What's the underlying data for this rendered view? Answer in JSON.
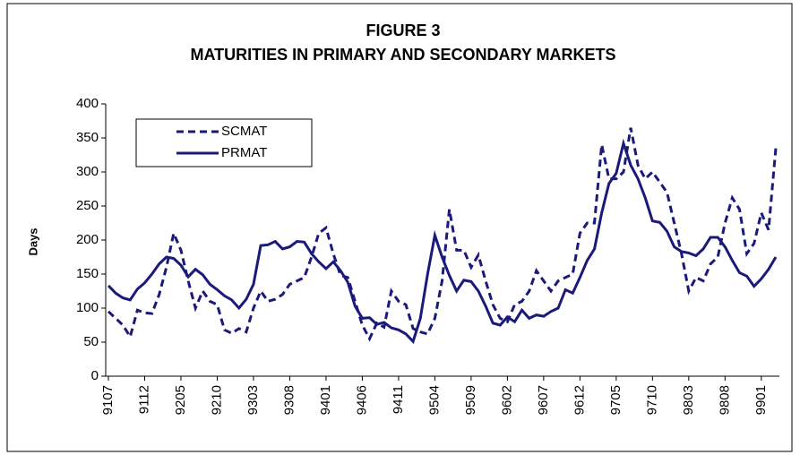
{
  "chart_data": {
    "type": "line",
    "title": "FIGURE 3",
    "subtitle": "MATURITIES IN PRIMARY AND SECONDARY MARKETS",
    "y_label": "Days",
    "categories": [
      "9107",
      null,
      null,
      null,
      null,
      "9112",
      null,
      null,
      null,
      null,
      "9205",
      null,
      null,
      null,
      null,
      "9210",
      null,
      null,
      null,
      null,
      "9303",
      null,
      null,
      null,
      null,
      "9308",
      null,
      null,
      null,
      null,
      "9401",
      null,
      null,
      null,
      null,
      "9406",
      null,
      null,
      null,
      null,
      "9411",
      null,
      null,
      null,
      null,
      "9504",
      null,
      null,
      null,
      null,
      "9509",
      null,
      null,
      null,
      null,
      "9602",
      null,
      null,
      null,
      null,
      "9607",
      null,
      null,
      null,
      null,
      "9612",
      null,
      null,
      null,
      null,
      "9705",
      null,
      null,
      null,
      null,
      "9710",
      null,
      null,
      null,
      null,
      "9803",
      null,
      null,
      null,
      null,
      "9808",
      null,
      null,
      null,
      null,
      "9901",
      null,
      null
    ],
    "series": [
      {
        "name": "SCMAT",
        "color": "#1a1a7a",
        "linestyle": "dashed",
        "values": [
          95,
          85,
          75,
          58,
          97,
          93,
          92,
          120,
          160,
          210,
          185,
          140,
          100,
          125,
          110,
          105,
          68,
          63,
          70,
          65,
          100,
          125,
          110,
          113,
          120,
          135,
          140,
          145,
          175,
          210,
          218,
          180,
          148,
          145,
          110,
          75,
          55,
          78,
          72,
          125,
          110,
          105,
          70,
          65,
          62,
          85,
          140,
          245,
          185,
          185,
          160,
          178,
          140,
          105,
          85,
          80,
          105,
          110,
          125,
          155,
          140,
          125,
          140,
          145,
          150,
          210,
          225,
          225,
          340,
          290,
          290,
          300,
          365,
          310,
          290,
          300,
          285,
          270,
          225,
          180,
          125,
          145,
          140,
          165,
          175,
          225,
          262,
          245,
          180,
          195,
          240,
          215,
          335
        ]
      },
      {
        "name": "PRMAT",
        "color": "#1a1a7a",
        "linestyle": "solid",
        "values": [
          133,
          122,
          115,
          112,
          128,
          137,
          150,
          165,
          175,
          173,
          163,
          146,
          157,
          149,
          135,
          127,
          118,
          112,
          100,
          113,
          135,
          192,
          193,
          198,
          187,
          190,
          198,
          197,
          180,
          168,
          158,
          168,
          155,
          138,
          103,
          85,
          86,
          76,
          79,
          71,
          68,
          62,
          51,
          85,
          150,
          207,
          175,
          148,
          125,
          141,
          139,
          125,
          103,
          78,
          75,
          87,
          80,
          97,
          85,
          90,
          88,
          95,
          100,
          127,
          122,
          145,
          170,
          187,
          240,
          283,
          298,
          342,
          310,
          290,
          262,
          228,
          226,
          213,
          190,
          183,
          181,
          177,
          187,
          204,
          204,
          190,
          170,
          152,
          147,
          132,
          143,
          157,
          175
        ]
      }
    ],
    "ylim": [
      0,
      400
    ],
    "yticks": [
      0,
      50,
      100,
      150,
      200,
      250,
      300,
      350,
      400
    ],
    "grid": false,
    "legend": "upper left"
  }
}
